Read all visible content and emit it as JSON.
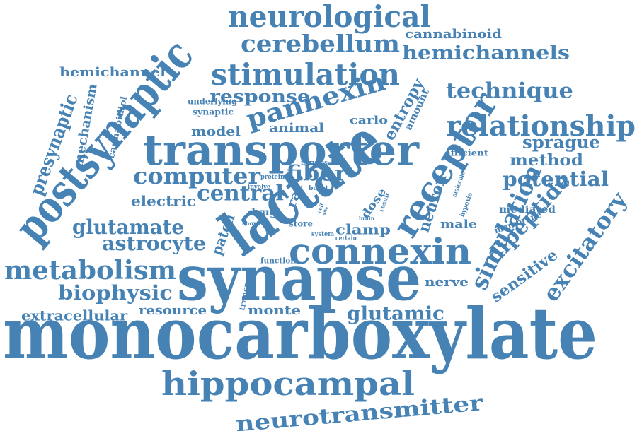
{
  "color": "#4682b4",
  "words": [
    {
      "id": "monocarboxylate",
      "text": "monocarboxylate"
    },
    {
      "id": "synapse",
      "text": "synapse"
    },
    {
      "id": "lactate",
      "text": "lactate"
    },
    {
      "id": "transporter",
      "text": "transporter"
    },
    {
      "id": "postsynaptic",
      "text": "postsynaptic"
    },
    {
      "id": "hippocampal",
      "text": "hippocampal"
    },
    {
      "id": "receptor",
      "text": "receptor"
    },
    {
      "id": "connexin",
      "text": "connexin"
    },
    {
      "id": "neurological",
      "text": "neurological"
    },
    {
      "id": "stimulation",
      "text": "stimulation"
    },
    {
      "id": "relationship",
      "text": "relationship"
    },
    {
      "id": "neurotransmitter",
      "text": "neurotransmitter"
    },
    {
      "id": "metabolism",
      "text": "metabolism"
    },
    {
      "id": "pannexin",
      "text": "pannexin"
    },
    {
      "id": "cerebellum",
      "text": "cerebellum"
    },
    {
      "id": "simulation",
      "text": "simulation"
    },
    {
      "id": "computer",
      "text": "computer"
    },
    {
      "id": "excitatory",
      "text": "excitatory"
    },
    {
      "id": "hemichannels",
      "text": "hemichannels"
    },
    {
      "id": "technique",
      "text": "technique"
    },
    {
      "id": "glutamate",
      "text": "glutamate"
    },
    {
      "id": "dipeptide",
      "text": "dipeptide"
    },
    {
      "id": "biophysic",
      "text": "biophysic"
    },
    {
      "id": "potential",
      "text": "potential"
    },
    {
      "id": "astrocyte",
      "text": "astrocyte"
    },
    {
      "id": "central",
      "text": "central"
    },
    {
      "id": "glutamic",
      "text": "glutamic"
    },
    {
      "id": "fiber",
      "text": "fiber"
    },
    {
      "id": "sprague",
      "text": "sprague"
    },
    {
      "id": "presynaptic",
      "text": "presynaptic"
    },
    {
      "id": "response",
      "text": "response"
    },
    {
      "id": "method",
      "text": "method"
    },
    {
      "id": "extracellular",
      "text": "extracellular"
    },
    {
      "id": "sensitive",
      "text": "sensitive"
    },
    {
      "id": "entropy",
      "text": "entropy"
    },
    {
      "id": "neuron",
      "text": "neuron"
    },
    {
      "id": "hemichannel",
      "text": "hemichannel"
    },
    {
      "id": "cannabinoid",
      "text": "cannabinoid"
    },
    {
      "id": "clamp",
      "text": "clamp"
    },
    {
      "id": "electric",
      "text": "electric"
    },
    {
      "id": "resource",
      "text": "resource"
    },
    {
      "id": "monte",
      "text": "monte"
    },
    {
      "id": "animal",
      "text": "animal"
    },
    {
      "id": "model",
      "text": "model"
    },
    {
      "id": "patch",
      "text": "patch"
    },
    {
      "id": "mechanism",
      "text": "mechanism"
    },
    {
      "id": "carlo",
      "text": "carlo"
    },
    {
      "id": "dose",
      "text": "dose"
    },
    {
      "id": "nerve",
      "text": "nerve"
    },
    {
      "id": "male",
      "text": "male"
    },
    {
      "id": "mediated",
      "text": "mediated"
    },
    {
      "id": "rat",
      "text": "rat"
    },
    {
      "id": "drug",
      "text": "drug"
    },
    {
      "id": "amount",
      "text": "amount"
    },
    {
      "id": "cannabidiol",
      "text": "cannabidiol"
    },
    {
      "id": "underlying",
      "text": "underlying"
    },
    {
      "id": "synaptic",
      "text": "synaptic"
    },
    {
      "id": "efficient",
      "text": "efficient"
    },
    {
      "id": "membrane",
      "text": "membrane"
    },
    {
      "id": "store",
      "text": "store"
    },
    {
      "id": "transport",
      "text": "transport"
    },
    {
      "id": "function",
      "text": "function"
    },
    {
      "id": "nervous",
      "text": "nervous"
    },
    {
      "id": "protein",
      "text": "protein"
    },
    {
      "id": "involve",
      "text": "involve"
    },
    {
      "id": "boost",
      "text": "boost"
    },
    {
      "id": "result",
      "text": "result"
    },
    {
      "id": "molecule",
      "text": "molecule"
    },
    {
      "id": "hypoxia",
      "text": "hypoxia"
    },
    {
      "id": "brain",
      "text": "brain"
    },
    {
      "id": "system",
      "text": "system"
    },
    {
      "id": "certain",
      "text": "certain"
    },
    {
      "id": "short",
      "text": "short"
    },
    {
      "id": "cell",
      "text": "cell"
    },
    {
      "id": "site",
      "text": "site"
    }
  ]
}
